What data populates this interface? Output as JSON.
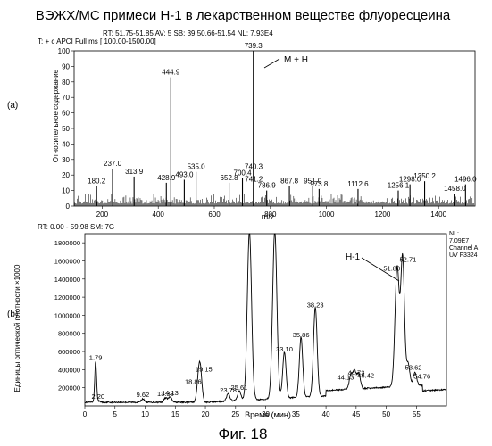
{
  "figure": {
    "title": "ВЭЖХ/МС примеси Н-1 в лекарственном веществе флуоресцеина",
    "caption": "Фиг. 18"
  },
  "chart_data": [
    {
      "type": "bar",
      "panel_label": "(a)",
      "header_line1": "RT: 51.75-51.85   AV: 5   SB: 39  50.66-51.54   NL: 7.93E4",
      "header_line2": "T: + c APCI Full ms [ 100.00-1500.00]",
      "xlabel": "m/z",
      "ylabel": "Относительное содержание",
      "xlim": [
        100,
        1530
      ],
      "ylim": [
        0,
        100
      ],
      "xticks": [
        200,
        400,
        600,
        800,
        1000,
        1200,
        1400
      ],
      "yticks": [
        0,
        10,
        20,
        30,
        40,
        50,
        60,
        70,
        80,
        90,
        100
      ],
      "annotation": "M + H",
      "peaks": [
        {
          "x": 180.2,
          "y": 13,
          "label": "180.2"
        },
        {
          "x": 237.0,
          "y": 24,
          "label": "237.0"
        },
        {
          "x": 313.9,
          "y": 19,
          "label": "313.9"
        },
        {
          "x": 428.9,
          "y": 15,
          "label": "428.9"
        },
        {
          "x": 444.9,
          "y": 83,
          "label": "444.9"
        },
        {
          "x": 493.0,
          "y": 17,
          "label": "493.0"
        },
        {
          "x": 535.0,
          "y": 22,
          "label": "535.0"
        },
        {
          "x": 652.8,
          "y": 15,
          "label": "652.8"
        },
        {
          "x": 700.4,
          "y": 18,
          "label": "700.4"
        },
        {
          "x": 739.3,
          "y": 100,
          "label": "739.3"
        },
        {
          "x": 740.3,
          "y": 22,
          "label": "740.3"
        },
        {
          "x": 741.2,
          "y": 14,
          "label": "741.2"
        },
        {
          "x": 786.9,
          "y": 10,
          "label": "786.9"
        },
        {
          "x": 867.8,
          "y": 13,
          "label": "867.8"
        },
        {
          "x": 951.0,
          "y": 13,
          "label": "951.0"
        },
        {
          "x": 973.8,
          "y": 11,
          "label": "973.8"
        },
        {
          "x": 1112.6,
          "y": 11,
          "label": "1112.6"
        },
        {
          "x": 1256.1,
          "y": 10,
          "label": "1256.1"
        },
        {
          "x": 1298.0,
          "y": 14,
          "label": "1298.0"
        },
        {
          "x": 1350.2,
          "y": 16,
          "label": "1350.2"
        },
        {
          "x": 1458.0,
          "y": 8,
          "label": "1458.0"
        },
        {
          "x": 1496.0,
          "y": 14,
          "label": "1496.0"
        }
      ]
    },
    {
      "type": "line",
      "panel_label": "(b)",
      "header_line1": "RT: 0.00 - 59.98   SM: 7G",
      "nl_block": [
        "NL:",
        "7.09E7",
        "Channel A",
        "UV F3324"
      ],
      "xlabel": "Время (мин)",
      "ylabel": "Единицы оптической плотности ×1000",
      "xlim": [
        0,
        59.98
      ],
      "ylim": [
        0,
        1900000
      ],
      "xticks": [
        0,
        5,
        10,
        15,
        20,
        25,
        30,
        35,
        40,
        45,
        50,
        55
      ],
      "yticks": [
        200000,
        400000,
        600000,
        800000,
        1000000,
        1200000,
        1400000,
        1600000,
        1800000
      ],
      "annotation": "H-1",
      "peaks": [
        {
          "x": 1.79,
          "y": 470000,
          "label": "1.79"
        },
        {
          "x": 2.2,
          "y": 40000,
          "label": "2.20"
        },
        {
          "x": 9.62,
          "y": 60000,
          "label": "9.62"
        },
        {
          "x": 13.38,
          "y": 70000,
          "label": "13.38"
        },
        {
          "x": 14.13,
          "y": 80000,
          "label": "14.13"
        },
        {
          "x": 18.86,
          "y": 220000,
          "label": "18.86"
        },
        {
          "x": 19.15,
          "y": 340000,
          "label": "19.15"
        },
        {
          "x": 23.78,
          "y": 110000,
          "label": "23.78"
        },
        {
          "x": 25.61,
          "y": 140000,
          "label": "25.61"
        },
        {
          "x": 27.3,
          "y": 1900000,
          "label": ""
        },
        {
          "x": 31.5,
          "y": 1900000,
          "label": ""
        },
        {
          "x": 33.1,
          "y": 560000,
          "label": "33.10"
        },
        {
          "x": 35.86,
          "y": 720000,
          "label": "35.86"
        },
        {
          "x": 38.23,
          "y": 1050000,
          "label": "38.23"
        },
        {
          "x": 44.13,
          "y": 260000,
          "label": "44.13"
        },
        {
          "x": 44.73,
          "y": 300000,
          "label": "44.73"
        },
        {
          "x": 45.42,
          "y": 280000,
          "label": "45.42"
        },
        {
          "x": 51.8,
          "y": 1450000,
          "label": "51.80"
        },
        {
          "x": 52.71,
          "y": 1550000,
          "label": "52.71"
        },
        {
          "x": 53.62,
          "y": 380000,
          "label": "53.62"
        },
        {
          "x": 54.76,
          "y": 280000,
          "label": "54.76"
        }
      ]
    }
  ]
}
